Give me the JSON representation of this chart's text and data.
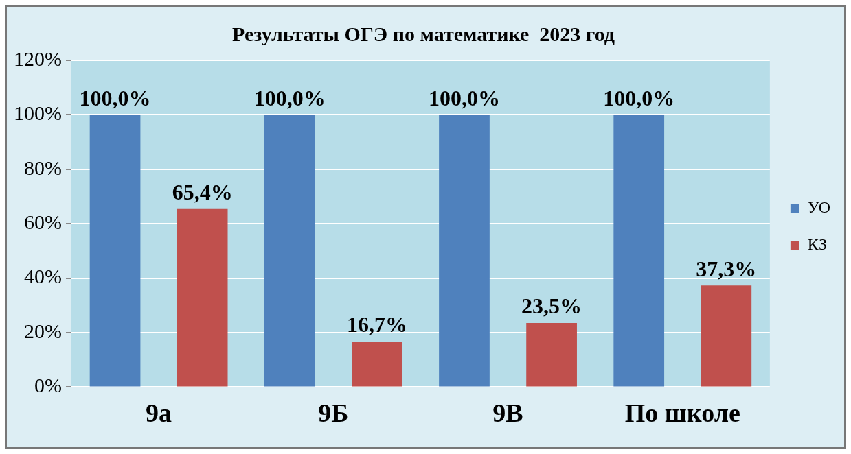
{
  "chart_data": {
    "type": "bar",
    "title": "Результаты ОГЭ по математике  2023 год",
    "categories": [
      "9а",
      "9Б",
      "9В",
      "По школе"
    ],
    "series": [
      {
        "name": "УО",
        "color": "#4f81bd",
        "values": [
          100,
          100,
          100,
          100
        ],
        "value_labels": [
          "100,0%",
          "100,0%",
          "100,0%",
          "100,0%"
        ]
      },
      {
        "name": "КЗ",
        "color": "#c0504d",
        "values": [
          65.4,
          16.7,
          23.5,
          37.3
        ],
        "value_labels": [
          "65,4%",
          "16,7%",
          "23,5%",
          "37,3%"
        ]
      }
    ],
    "ylim": [
      0,
      120
    ],
    "yticks": [
      {
        "value": 0,
        "label": "0%"
      },
      {
        "value": 20,
        "label": "20%"
      },
      {
        "value": 40,
        "label": "40%"
      },
      {
        "value": 60,
        "label": "60%"
      },
      {
        "value": 80,
        "label": "80%"
      },
      {
        "value": 100,
        "label": "100%"
      },
      {
        "value": 120,
        "label": "120%"
      }
    ],
    "grid": "y",
    "legend": "right"
  }
}
